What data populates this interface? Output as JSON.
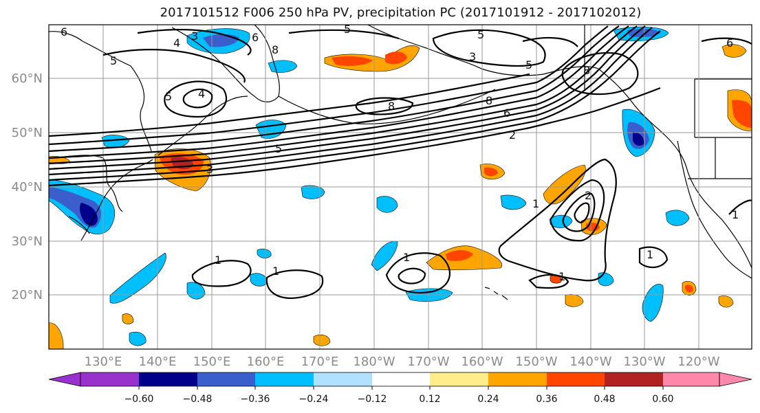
{
  "title": "2017101512 F006 250 hPa PV, precipitation PC (2017101912 - 2017102012)",
  "map": {
    "lat_labels": [
      "60°N",
      "50°N",
      "40°N",
      "30°N",
      "20°N"
    ],
    "lon_labels": [
      "130°E",
      "140°E",
      "150°E",
      "160°E",
      "170°E",
      "180°W",
      "170°W",
      "160°W",
      "150°W",
      "140°W",
      "130°W",
      "120°W"
    ],
    "contour_labels": [
      "6",
      "3",
      "4",
      "5",
      "8",
      "5",
      "6",
      "5",
      "8",
      "6",
      "2",
      "5",
      "4",
      "5",
      "3",
      "8",
      "5",
      "1",
      "1",
      "1",
      "1",
      "2",
      "1",
      "3",
      "6",
      "8",
      "1",
      "1"
    ],
    "colors": {
      "land_outline": "#000000",
      "grid": "#999999",
      "contour": "#000000"
    }
  },
  "colorbar": {
    "tick_labels": [
      "−0.60",
      "−0.48",
      "−0.36",
      "−0.24",
      "−0.12",
      "0.12",
      "0.24",
      "0.36",
      "0.48",
      "0.60"
    ],
    "colors": [
      "#9932cc",
      "#00008b",
      "#3a5fcd",
      "#00bfff",
      "#b0e2ff",
      "#ffffff",
      "#ffec8b",
      "#ffa500",
      "#ff4500",
      "#b22222",
      "#ff88aa"
    ]
  }
}
